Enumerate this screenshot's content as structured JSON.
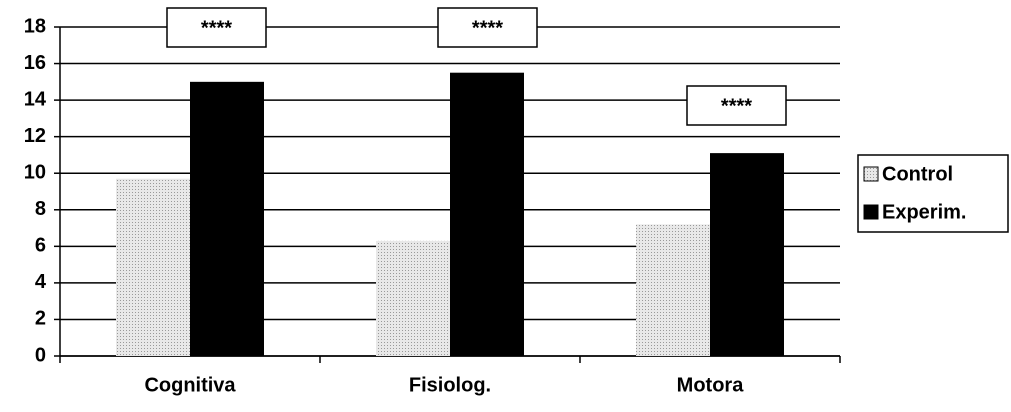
{
  "chart_data": {
    "type": "bar",
    "categories": [
      "Cognitiva",
      "Fisiolog.",
      "Motora"
    ],
    "series": [
      {
        "name": "Control",
        "color": "#d9d9d9",
        "values": [
          9.7,
          6.3,
          7.2
        ]
      },
      {
        "name": "Experim.",
        "color": "#000000",
        "values": [
          15.0,
          15.5,
          11.1
        ]
      }
    ],
    "annotations": [
      "****",
      "****",
      "****"
    ],
    "ylim": [
      0,
      18
    ],
    "yticks": [
      0,
      2,
      4,
      6,
      8,
      10,
      12,
      14,
      16,
      18
    ],
    "grid": true,
    "legend": "right"
  }
}
